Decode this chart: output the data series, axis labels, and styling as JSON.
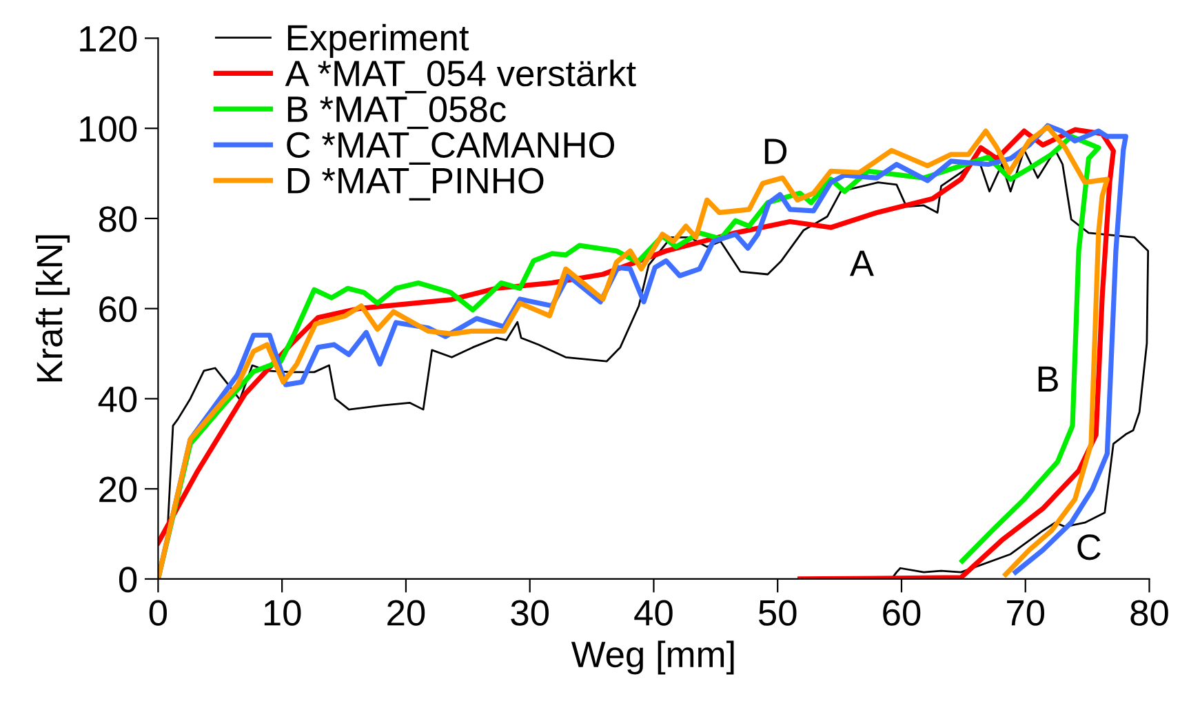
{
  "chart_data": {
    "type": "line",
    "xlabel": "Weg [mm]",
    "ylabel": "Kraft [kN]",
    "xlim": [
      0,
      80
    ],
    "ylim": [
      0,
      120
    ],
    "xticks": [
      0,
      10,
      20,
      30,
      40,
      50,
      60,
      70,
      80
    ],
    "yticks": [
      0,
      20,
      40,
      60,
      80,
      100,
      120
    ],
    "grid": false,
    "legend": "top left",
    "marker": "none",
    "line_style": "solid",
    "series": [
      {
        "name": "Experiment",
        "color": "#000000",
        "x": [
          0,
          0.7,
          1.2,
          1.6,
          2.6,
          3.7,
          4.6,
          5.7,
          6.6,
          7.6,
          8.8,
          10.7,
          12.6,
          13.8,
          14.3,
          15.4,
          18.1,
          20.3,
          21.4,
          22.1,
          23.7,
          25.4,
          27.3,
          28.1,
          29,
          29.3,
          30.7,
          32.9,
          36.2,
          37.3,
          38.8,
          39.6,
          41.4,
          42.9,
          44.3,
          45.4,
          47,
          49.2,
          50.3,
          52.1,
          54,
          55.1,
          58.1,
          59.6,
          60.4,
          61.8,
          62.9,
          63.2,
          64.8,
          66.2,
          67.1,
          68.1,
          68.8,
          69.9,
          71,
          72.4,
          73,
          73.7,
          75.1,
          78.8,
          79.9,
          79.8,
          79.2,
          78.7,
          78.1,
          77.1,
          76.4,
          74.8,
          73.2,
          72.4,
          71.4,
          68.8,
          64.8,
          63.2,
          61.8,
          59.9,
          59.6,
          59.2
        ],
        "values": [
          0,
          7.6,
          34,
          35.5,
          40,
          46.2,
          46.8,
          43,
          39.8,
          47.4,
          46.2,
          45.9,
          45.9,
          47.4,
          40,
          37.6,
          38.5,
          39.1,
          37.6,
          50.8,
          49.2,
          51.4,
          53.5,
          53,
          57,
          53.5,
          52,
          49.2,
          48.3,
          51.4,
          60.6,
          69.7,
          75.8,
          75.8,
          73.7,
          74.9,
          68.2,
          67.6,
          70.6,
          77.4,
          80.4,
          86,
          88,
          87.5,
          82.6,
          82.9,
          81.3,
          87.2,
          90.2,
          93.3,
          86,
          92,
          86,
          95.2,
          89,
          95.2,
          92,
          79.8,
          76.8,
          75.8,
          72.8,
          52.3,
          37,
          33,
          32.1,
          30,
          14.7,
          12.5,
          11.6,
          12.5,
          10.7,
          5.5,
          1.5,
          1.8,
          1.5,
          2.4,
          1.5,
          0
        ]
      },
      {
        "name": "A *MAT_054 verstärkt",
        "color": "#ff0000",
        "x": [
          0,
          3.2,
          7,
          10.7,
          12.9,
          16.2,
          23.7,
          27.3,
          31.8,
          35.9,
          41,
          46.6,
          51,
          54.3,
          58,
          62.5,
          64.8,
          66.4,
          67.7,
          69.9,
          71.4,
          74,
          76.2,
          77.1,
          76.8,
          76.2,
          75.7,
          74.3,
          71.4,
          68.1,
          64.8,
          51.8
        ],
        "values": [
          8,
          24,
          41,
          52,
          58,
          60,
          62,
          64.5,
          65.7,
          67.6,
          72.8,
          76.8,
          79.3,
          78,
          81.3,
          84.4,
          88.7,
          95.7,
          93.3,
          99.4,
          96.3,
          99.7,
          98.8,
          95,
          88,
          62.7,
          32,
          24,
          15.6,
          8.6,
          0.3,
          0
        ]
      },
      {
        "name": "B *MAT_058c",
        "color": "#00ee00",
        "x": [
          0,
          2.6,
          5.1,
          7.7,
          9.9,
          11,
          12.6,
          14,
          15.3,
          16.6,
          17.7,
          19.2,
          21,
          23.6,
          25.4,
          27.7,
          29.2,
          30.3,
          31.8,
          32.9,
          34,
          37,
          38.7,
          40.7,
          41.8,
          43.7,
          45.4,
          46.6,
          47.7,
          49.2,
          51.8,
          52.7,
          54.3,
          55.4,
          57.3,
          61.8,
          64.8,
          67,
          68.8,
          70.3,
          72.1,
          73.7,
          75.9,
          75.1,
          74.3,
          73.8,
          72.6,
          69.9,
          67.3,
          64.9
        ],
        "values": [
          0,
          30,
          38,
          46,
          48.3,
          54.4,
          64.2,
          62.4,
          64.5,
          63.6,
          61.2,
          64.5,
          65.7,
          63.6,
          59.7,
          65.7,
          64.5,
          70.6,
          72.2,
          71.9,
          74,
          72.8,
          70.3,
          76.1,
          73.7,
          76.8,
          75.5,
          79.5,
          78.3,
          83.5,
          85.6,
          83.5,
          88.7,
          86,
          90.5,
          89,
          91.7,
          93.6,
          88.7,
          91.1,
          94.2,
          98.2,
          95.7,
          93.3,
          72.8,
          34,
          26,
          17.7,
          10.7,
          4
        ]
      },
      {
        "name": "C *MAT_CAMANHO",
        "color": "#3f6fff",
        "x": [
          0,
          2.6,
          6.4,
          7.7,
          9,
          10.3,
          11.6,
          12.9,
          14.2,
          15.4,
          16.8,
          17.9,
          19.2,
          21.8,
          23.2,
          25.7,
          27.9,
          29.2,
          31.8,
          33.1,
          35.7,
          37.1,
          38.1,
          39.2,
          40.1,
          41,
          42.1,
          43.7,
          44.8,
          46.6,
          47.6,
          48.4,
          49.3,
          50.2,
          51,
          52.9,
          54.3,
          55.4,
          58,
          59.6,
          62.1,
          64,
          67,
          68.8,
          70.3,
          71.8,
          72.9,
          74,
          75.9,
          76.6,
          78.1,
          77.9,
          77.3,
          76.6,
          75.4,
          73.7,
          71.4,
          69.2
        ],
        "values": [
          0,
          31,
          45.3,
          54.1,
          54.1,
          43.1,
          43.7,
          51.4,
          52,
          49.8,
          54.7,
          47.7,
          56.9,
          55.7,
          53.8,
          57.8,
          56,
          62.1,
          60.6,
          67.3,
          61.5,
          69.1,
          68.8,
          61.5,
          69.1,
          70.6,
          67.3,
          68.8,
          74.9,
          76.5,
          73.4,
          76.5,
          83.5,
          85.3,
          82,
          81.7,
          88,
          89.6,
          89,
          92,
          88.4,
          92.7,
          92,
          93.3,
          96.3,
          100.6,
          99.4,
          97.2,
          99.4,
          98.2,
          98.2,
          95.2,
          72.8,
          27.8,
          19.9,
          12.5,
          6.4,
          1.5
        ]
      },
      {
        "name": "D *MAT_PINHO",
        "color": "#ff9900",
        "x": [
          0,
          2.6,
          5.1,
          6.4,
          7.7,
          8.8,
          10.1,
          11.2,
          12.7,
          15.1,
          16.4,
          17.7,
          19,
          21.8,
          23.7,
          25.3,
          27.9,
          29.2,
          31.6,
          32.9,
          35.9,
          37,
          38.1,
          39,
          40.7,
          41.6,
          42.6,
          43.4,
          44.3,
          45.3,
          47.7,
          48.8,
          50.4,
          51.6,
          52.9,
          54.3,
          56.6,
          59.2,
          62.1,
          64,
          65.4,
          66.8,
          67.7,
          68.7,
          70.3,
          71.8,
          73.2,
          74.8,
          76.6,
          76.2,
          75.9,
          75.3,
          74,
          72.1,
          70.3,
          68.4
        ],
        "values": [
          0,
          31,
          39,
          43,
          50.5,
          52,
          43.7,
          47.7,
          56.6,
          58.4,
          60.6,
          55.4,
          59.3,
          55,
          54.4,
          55,
          55,
          61.2,
          58.4,
          68.8,
          62.1,
          70.3,
          72.8,
          68.8,
          76.5,
          74.9,
          78.3,
          75.8,
          84.1,
          81.3,
          82,
          87.8,
          89,
          84.1,
          85.6,
          90.5,
          90.2,
          95.1,
          91.7,
          94.2,
          94.2,
          99.4,
          95.7,
          90.2,
          97.2,
          100.3,
          95.7,
          88,
          88.7,
          85,
          76.8,
          30,
          17.7,
          10.7,
          6.4,
          1
        ]
      }
    ],
    "annotations": [
      "A",
      "B",
      "C",
      "D"
    ]
  }
}
